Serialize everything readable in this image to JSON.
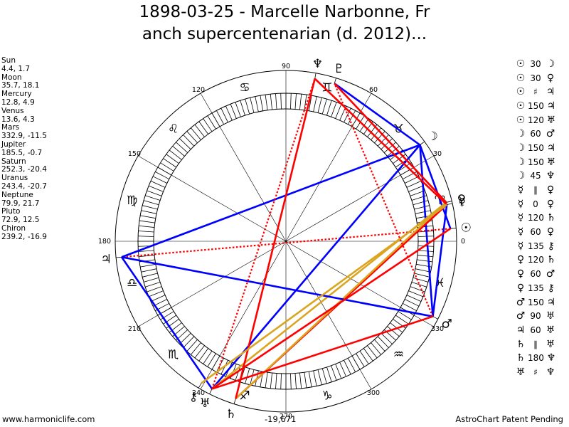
{
  "title": {
    "line1": "1898-03-25 - Marcelle Narbonne, Fr",
    "line2": "anch supercentenarian (d. 2012)..."
  },
  "planets": [
    {
      "name": "Sun",
      "coords": "4.4, 1.7",
      "lon": 4.4,
      "glyph": "☉",
      "color": "#000000"
    },
    {
      "name": "Moon",
      "coords": "35.7, 18.1",
      "lon": 35.7,
      "glyph": "☽",
      "color": "#000000"
    },
    {
      "name": "Mercury",
      "coords": "12.8, 4.9",
      "lon": 12.8,
      "glyph": "☿",
      "color": "#000000"
    },
    {
      "name": "Venus",
      "coords": "13.6, 4.3",
      "lon": 13.6,
      "glyph": "♀",
      "color": "#000000"
    },
    {
      "name": "Mars",
      "coords": "332.9, -11.5",
      "lon": 332.9,
      "glyph": "♂",
      "color": "#000000"
    },
    {
      "name": "Jupiter",
      "coords": "185.5, -0.7",
      "lon": 185.5,
      "glyph": "♃",
      "color": "#000000"
    },
    {
      "name": "Saturn",
      "coords": "252.3, -20.4",
      "lon": 252.3,
      "glyph": "♄",
      "color": "#000000"
    },
    {
      "name": "Uranus",
      "coords": "243.4, -20.7",
      "lon": 243.4,
      "glyph": "♅",
      "color": "#000000"
    },
    {
      "name": "Neptune",
      "coords": "79.9, 21.7",
      "lon": 79.9,
      "glyph": "♆",
      "color": "#000000"
    },
    {
      "name": "Pluto",
      "coords": "72.9, 12.5",
      "lon": 72.9,
      "glyph": "♇",
      "color": "#000000"
    },
    {
      "name": "Chiron",
      "coords": "239.2, -16.9",
      "lon": 239.2,
      "glyph": "⚷",
      "color": "#000000"
    }
  ],
  "aspects": [
    {
      "p1": "☉",
      "value": "30",
      "p2": "☽"
    },
    {
      "p1": "☉",
      "value": "30",
      "p2": "♀"
    },
    {
      "p1": "☉",
      "value": "♯",
      "p2": "♃"
    },
    {
      "p1": "☉",
      "value": "150",
      "p2": "♃"
    },
    {
      "p1": "☉",
      "value": "120",
      "p2": "♅"
    },
    {
      "p1": "☽",
      "value": "60",
      "p2": "♂"
    },
    {
      "p1": "☽",
      "value": "150",
      "p2": "♃"
    },
    {
      "p1": "☽",
      "value": "150",
      "p2": "♅"
    },
    {
      "p1": "☽",
      "value": "45",
      "p2": "♆"
    },
    {
      "p1": "☿",
      "value": "∥",
      "p2": "♀"
    },
    {
      "p1": "☿",
      "value": "0",
      "p2": "♀"
    },
    {
      "p1": "☿",
      "value": "120",
      "p2": "♄"
    },
    {
      "p1": "☿",
      "value": "60",
      "p2": "♀"
    },
    {
      "p1": "☿",
      "value": "135",
      "p2": "⚷"
    },
    {
      "p1": "♀",
      "value": "120",
      "p2": "♄"
    },
    {
      "p1": "♀",
      "value": "60",
      "p2": "♂"
    },
    {
      "p1": "♀",
      "value": "135",
      "p2": "⚷"
    },
    {
      "p1": "♂",
      "value": "150",
      "p2": "♃"
    },
    {
      "p1": "♂",
      "value": "90",
      "p2": "♅"
    },
    {
      "p1": "♃",
      "value": "60",
      "p2": "♅"
    },
    {
      "p1": "♄",
      "value": "∥",
      "p2": "♅"
    },
    {
      "p1": "♄",
      "value": "180",
      "p2": "♆"
    },
    {
      "p1": "♅",
      "value": "♯",
      "p2": "♆"
    }
  ],
  "wheel": {
    "degree_labels": [
      "0",
      "30",
      "60",
      "90",
      "120",
      "150",
      "180",
      "210",
      "240",
      "270",
      "300",
      "330"
    ],
    "signs": [
      "♈",
      "♉",
      "♊",
      "♋",
      "♌",
      "♍",
      "♎",
      "♏",
      "♐",
      "♑",
      "♒",
      "♓"
    ],
    "zodiac_offset": 0
  },
  "chart_lines": [
    {
      "a": 4.4,
      "b": 35.7,
      "color": "#0000ff",
      "style": "solid"
    },
    {
      "a": 4.4,
      "b": 185.5,
      "color": "#ff0000",
      "style": "dotted"
    },
    {
      "a": 35.7,
      "b": 185.5,
      "color": "#0000ff",
      "style": "solid"
    },
    {
      "a": 35.7,
      "b": 332.9,
      "color": "#0000ff",
      "style": "solid"
    },
    {
      "a": 35.7,
      "b": 243.4,
      "color": "#0000ff",
      "style": "solid"
    },
    {
      "a": 35.7,
      "b": 72.9,
      "color": "#0000ff",
      "style": "solid"
    },
    {
      "a": 12.8,
      "b": 252.3,
      "color": "#ff0000",
      "style": "solid"
    },
    {
      "a": 13.6,
      "b": 252.3,
      "color": "#daa520",
      "style": "solid"
    },
    {
      "a": 13.6,
      "b": 243.4,
      "color": "#daa520",
      "style": "solid"
    },
    {
      "a": 12.8,
      "b": 332.9,
      "color": "#0000ff",
      "style": "solid"
    },
    {
      "a": 12.8,
      "b": 79.9,
      "color": "#ff0000",
      "style": "solid"
    },
    {
      "a": 13.6,
      "b": 72.9,
      "color": "#ff0000",
      "style": "solid"
    },
    {
      "a": 332.9,
      "b": 185.5,
      "color": "#0000ff",
      "style": "solid"
    },
    {
      "a": 332.9,
      "b": 243.4,
      "color": "#ff0000",
      "style": "solid"
    },
    {
      "a": 332.9,
      "b": 72.9,
      "color": "#ff0000",
      "style": "dotted"
    },
    {
      "a": 185.5,
      "b": 243.4,
      "color": "#0000ff",
      "style": "solid"
    },
    {
      "a": 252.3,
      "b": 79.9,
      "color": "#ff0000",
      "style": "solid"
    },
    {
      "a": 243.4,
      "b": 79.9,
      "color": "#ff0000",
      "style": "dotted"
    },
    {
      "a": 239.2,
      "b": 12.8,
      "color": "#daa520",
      "style": "solid"
    },
    {
      "a": 4.4,
      "b": 243.4,
      "color": "#ff0000",
      "style": "solid"
    }
  ],
  "footer": {
    "left": "www.harmoniclife.com",
    "center": "-19,671",
    "right": "AstroChart Patent Pending"
  }
}
